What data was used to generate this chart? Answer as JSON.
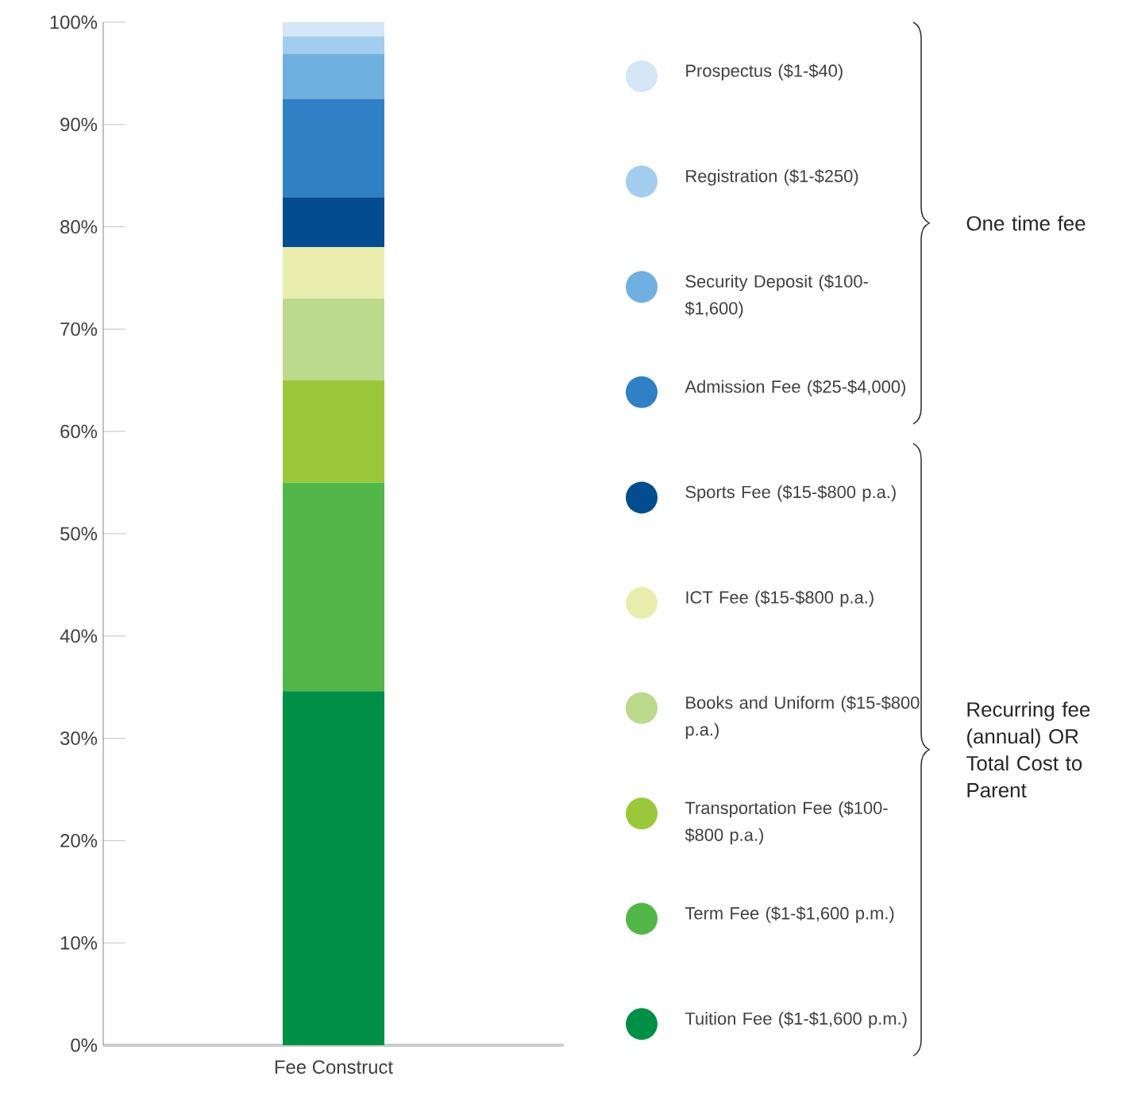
{
  "chart_data": {
    "type": "bar",
    "stacked": true,
    "categories": [
      "Fee Construct"
    ],
    "series": [
      {
        "name": "Tuition Fee ($1-$1,600 p.m.)",
        "color": "#008f47",
        "values": [
          34.6
        ]
      },
      {
        "name": "Term Fee ($1-$1,600 p.m.)",
        "color": "#52b748",
        "values": [
          20.4
        ]
      },
      {
        "name": "Transportation Fee ($100-$800 p.a.)",
        "color": "#9bc83a",
        "values": [
          10
        ]
      },
      {
        "name": "Books and Uniform ($15-$800 p.a.)",
        "color": "#bcd98c",
        "values": [
          8
        ]
      },
      {
        "name": "ICT Fee ($15-$800 p.a.)",
        "color": "#e8edae",
        "values": [
          5
        ]
      },
      {
        "name": "Sports Fee ($15-$800 p.a.)",
        "color": "#034c8f",
        "values": [
          4.9
        ]
      },
      {
        "name": "Admission Fee ($25-$4,000)",
        "color": "#2f80c4",
        "values": [
          9.6
        ]
      },
      {
        "name": "Security Deposit ($100-$1,600)",
        "color": "#70b0e0",
        "values": [
          4.4
        ]
      },
      {
        "name": "Registration ($1-$250)",
        "color": "#a3cdee",
        "values": [
          1.7
        ]
      },
      {
        "name": "Prospectus ($1-$40)",
        "color": "#d5e6f6",
        "values": [
          1.4
        ]
      }
    ],
    "ylim": [
      0,
      100
    ],
    "yticks": [
      {
        "value": 0,
        "label": "0%"
      },
      {
        "value": 10,
        "label": "10%"
      },
      {
        "value": 20,
        "label": "20%"
      },
      {
        "value": 30,
        "label": "30%"
      },
      {
        "value": 40,
        "label": "40%"
      },
      {
        "value": 50,
        "label": "50%"
      },
      {
        "value": 60,
        "label": "60%"
      },
      {
        "value": 70,
        "label": "70%"
      },
      {
        "value": 80,
        "label": "80%"
      },
      {
        "value": 90,
        "label": "90%"
      },
      {
        "value": 100,
        "label": "100%"
      }
    ],
    "legend": "right",
    "annotations": [
      "One time fee",
      "Recurring fee (annual) OR Total Cost to Parent"
    ]
  }
}
